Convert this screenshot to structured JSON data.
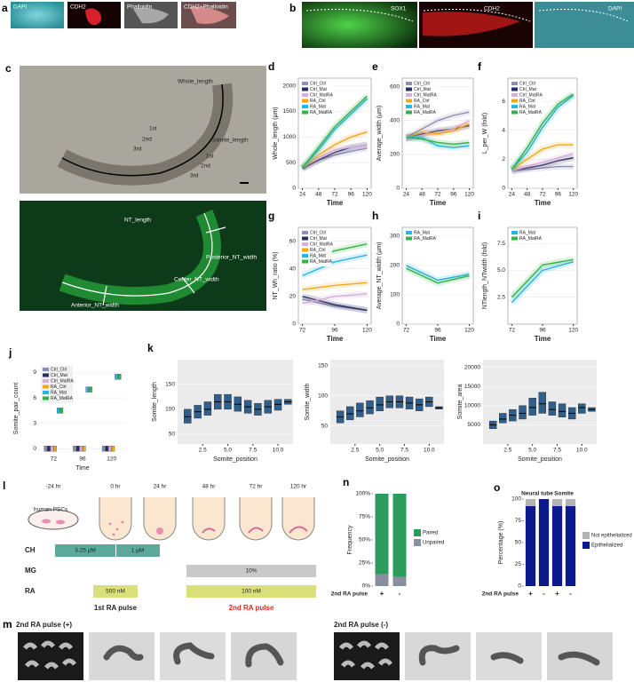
{
  "figure": {
    "panels": [
      "a",
      "b",
      "c",
      "l",
      "m"
    ],
    "a_labels": [
      "DAPI",
      "CDH2",
      "Phalloidin",
      "CDH2+Phalloidin"
    ],
    "b_labels": [
      "SOX1",
      "CDH2",
      "DAPI"
    ],
    "c_top": [
      "Whole_length",
      "Somite_length",
      "1st",
      "2nd",
      "3rd",
      "1st",
      "2nd",
      "3rd"
    ],
    "c_bottom": [
      "NT_length",
      "Posterior_NT_width",
      "Center_NT_width",
      "Anterior_NT_width"
    ],
    "l": {
      "times": [
        "-24 hr",
        "0 hr",
        "24 hr",
        "48 hr",
        "72 hr",
        "120 hr"
      ],
      "cells": "human PSCs",
      "rows": [
        "CH",
        "MG",
        "RA"
      ],
      "ch": [
        "3.25 µM",
        "1 µM"
      ],
      "mg": "10%",
      "ra": [
        "500 nM",
        "100 nM"
      ],
      "pulses": [
        "1st RA pulse",
        "2nd RA pulse"
      ]
    },
    "m": [
      "2nd RA pulse (+)",
      "2nd RA pulse (-)"
    ]
  },
  "chart_data": [
    {
      "panel": "d",
      "type": "line",
      "x_label": "Time",
      "y_label": "Whole_length (µm)",
      "x": [
        24,
        48,
        72,
        96,
        120
      ],
      "xlim": [
        18,
        126
      ],
      "xticks": [
        24,
        48,
        72,
        96,
        120
      ],
      "ylim": [
        0,
        2150
      ],
      "yticks": [
        0,
        500,
        1000,
        1500,
        2000
      ],
      "legend": "top-left",
      "series": [
        {
          "name": "Ctrl_Ctrl",
          "color": "#8e8fb5",
          "values": [
            400,
            550,
            650,
            720,
            780
          ]
        },
        {
          "name": "Ctrl_Mat",
          "color": "#2e2e5e",
          "values": [
            380,
            550,
            700,
            800,
            850
          ]
        },
        {
          "name": "Ctrl_MatRA",
          "color": "#d8aede",
          "values": [
            400,
            600,
            750,
            800,
            850
          ]
        },
        {
          "name": "RA_Ctrl",
          "color": "#f2a81d",
          "values": [
            400,
            650,
            850,
            1000,
            1100
          ]
        },
        {
          "name": "RA_Mat",
          "color": "#27b4e6",
          "values": [
            400,
            750,
            1150,
            1450,
            1750
          ]
        },
        {
          "name": "RA_MatRA",
          "color": "#35b34a",
          "values": [
            400,
            800,
            1200,
            1500,
            1800
          ]
        }
      ]
    },
    {
      "panel": "e",
      "type": "line",
      "x_label": "Time",
      "y_label": "Average_width (µm)",
      "x": [
        24,
        48,
        72,
        96,
        120
      ],
      "xlim": [
        18,
        126
      ],
      "xticks": [
        24,
        48,
        72,
        96,
        120
      ],
      "ylim": [
        0,
        650
      ],
      "yticks": [
        0,
        200,
        400,
        600
      ],
      "legend": "top-left",
      "series": [
        {
          "name": "Ctrl_Ctrl",
          "color": "#8e8fb5",
          "values": [
            300,
            350,
            400,
            430,
            450
          ]
        },
        {
          "name": "Ctrl_Mat",
          "color": "#2e2e5e",
          "values": [
            300,
            320,
            340,
            350,
            370
          ]
        },
        {
          "name": "Ctrl_MatRA",
          "color": "#d8aede",
          "values": [
            280,
            310,
            330,
            350,
            400
          ]
        },
        {
          "name": "RA_Ctrl",
          "color": "#f2a81d",
          "values": [
            300,
            330,
            320,
            340,
            380
          ]
        },
        {
          "name": "RA_Mat",
          "color": "#27b4e6",
          "values": [
            300,
            300,
            250,
            240,
            250
          ]
        },
        {
          "name": "RA_MatRA",
          "color": "#35b34a",
          "values": [
            300,
            290,
            270,
            260,
            270
          ]
        }
      ]
    },
    {
      "panel": "f",
      "type": "line",
      "x_label": "Time",
      "y_label": "L_per_W (fold)",
      "x": [
        24,
        48,
        72,
        96,
        120
      ],
      "xlim": [
        18,
        126
      ],
      "xticks": [
        24,
        48,
        72,
        96,
        120
      ],
      "ylim": [
        0,
        7.6
      ],
      "yticks": [
        0,
        2,
        4,
        6
      ],
      "legend": "top-left",
      "series": [
        {
          "name": "Ctrl_Ctrl",
          "color": "#8e8fb5",
          "values": [
            1.2,
            1.3,
            1.4,
            1.5,
            1.5
          ]
        },
        {
          "name": "Ctrl_Mat",
          "color": "#2e2e5e",
          "values": [
            1.2,
            1.4,
            1.6,
            1.9,
            2.1
          ]
        },
        {
          "name": "Ctrl_MatRA",
          "color": "#d8aede",
          "values": [
            1.2,
            1.5,
            1.8,
            2.1,
            2.4
          ]
        },
        {
          "name": "RA_Ctrl",
          "color": "#f2a81d",
          "values": [
            1.3,
            2.0,
            2.7,
            3.0,
            3.0
          ]
        },
        {
          "name": "RA_Mat",
          "color": "#27b4e6",
          "values": [
            1.3,
            2.5,
            4.2,
            5.6,
            6.4
          ]
        },
        {
          "name": "RA_MatRA",
          "color": "#35b34a",
          "values": [
            1.3,
            2.8,
            4.5,
            5.8,
            6.5
          ]
        }
      ]
    },
    {
      "panel": "g",
      "type": "line",
      "x_label": "Time",
      "y_label": "NT_Wh_ratio (%)",
      "x": [
        72,
        96,
        120
      ],
      "xlim": [
        69,
        123
      ],
      "xticks": [
        72,
        96,
        120
      ],
      "ylim": [
        0,
        70
      ],
      "yticks": [
        0,
        20,
        40,
        60
      ],
      "legend": "top-left",
      "series": [
        {
          "name": "Ctrl_Ctrl",
          "color": "#8e8fb5",
          "values": [
            18,
            13,
            10
          ]
        },
        {
          "name": "Ctrl_Mat",
          "color": "#2e2e5e",
          "values": [
            20,
            14,
            10
          ]
        },
        {
          "name": "Ctrl_MatRA",
          "color": "#d8aede",
          "values": [
            15,
            20,
            22
          ]
        },
        {
          "name": "RA_Ctrl",
          "color": "#f2a81d",
          "values": [
            25,
            28,
            30
          ]
        },
        {
          "name": "RA_Mat",
          "color": "#27b4e6",
          "values": [
            35,
            45,
            50
          ]
        },
        {
          "name": "RA_MatRA",
          "color": "#35b34a",
          "values": [
            45,
            53,
            58
          ]
        }
      ]
    },
    {
      "panel": "h",
      "type": "line",
      "x_label": "Time",
      "y_label": "Average_NT_width (µm)",
      "x": [
        72,
        96,
        120
      ],
      "xlim": [
        69,
        123
      ],
      "xticks": [
        72,
        96,
        120
      ],
      "ylim": [
        0,
        330
      ],
      "yticks": [
        0,
        100,
        200,
        300
      ],
      "legend": "top-left",
      "series": [
        {
          "name": "RA_Mat",
          "color": "#27b4e6",
          "values": [
            200,
            150,
            170
          ]
        },
        {
          "name": "RA_MatRA",
          "color": "#35b34a",
          "values": [
            190,
            140,
            165
          ]
        }
      ]
    },
    {
      "panel": "i",
      "type": "line",
      "x_label": "Time",
      "y_label": "NTlength_NTwidth (fold)",
      "x": [
        72,
        96,
        120
      ],
      "xlim": [
        69,
        123
      ],
      "xticks": [
        72,
        96,
        120
      ],
      "ylim": [
        0,
        9
      ],
      "yticks": [
        2.5,
        {
          "value": 5,
          "label": "5.0"
        },
        7.5
      ],
      "legend": "top-left",
      "series": [
        {
          "name": "RA_Mat",
          "color": "#27b4e6",
          "values": [
            2,
            5,
            5.8
          ]
        },
        {
          "name": "RA_MatRA",
          "color": "#35b34a",
          "values": [
            2.5,
            5.5,
            6
          ]
        }
      ]
    },
    {
      "panel": "j",
      "type": "box_group",
      "x_label": "Time",
      "y_label": "Somite_pair_count",
      "categories": [
        "72",
        "96",
        "120"
      ],
      "ylim": [
        -0.5,
        10
      ],
      "yticks": [
        0,
        3,
        6,
        9
      ],
      "legend": "top-left",
      "series": [
        {
          "name": "Ctrl_Ctrl",
          "color": "#8e8fb5",
          "values": [
            0,
            0,
            0
          ]
        },
        {
          "name": "Ctrl_Mat",
          "color": "#2e2e5e",
          "values": [
            0,
            0,
            0
          ]
        },
        {
          "name": "Ctrl_MatRA",
          "color": "#d8aede",
          "values": [
            0,
            0,
            0
          ]
        },
        {
          "name": "RA_Ctrl",
          "color": "#f2a81d",
          "values": [
            0,
            0,
            0
          ]
        },
        {
          "name": "RA_Mat",
          "color": "#27b4e6",
          "values": [
            4.5,
            7,
            8.5
          ]
        },
        {
          "name": "RA_MatRA",
          "color": "#35b34a",
          "values": [
            4.5,
            7,
            8.5
          ]
        }
      ]
    },
    {
      "panel": "k",
      "type": "box",
      "x_label": "Somite_position",
      "y_label": "Somite_length",
      "color": "#2f5f8a",
      "x": [
        1,
        2,
        3,
        4,
        5,
        6,
        7,
        8,
        9,
        10,
        11
      ],
      "xlim": [
        0,
        11.5
      ],
      "xticks": [
        2.5,
        {
          "value": 5,
          "label": "5.0"
        },
        7.5,
        {
          "value": 10,
          "label": "10.0"
        }
      ],
      "ylim": [
        30,
        200
      ],
      "yticks": [
        50,
        100,
        150
      ],
      "q1": [
        72,
        82,
        88,
        100,
        100,
        96,
        92,
        88,
        92,
        98,
        110
      ],
      "median": [
        85,
        95,
        100,
        115,
        115,
        110,
        105,
        100,
        105,
        110,
        115
      ],
      "q3": [
        100,
        108,
        115,
        130,
        130,
        125,
        118,
        112,
        118,
        120,
        120
      ]
    },
    {
      "type": "box",
      "x_label": "Somite_position",
      "y_label": "Somite_width",
      "color": "#2f5f8a",
      "x": [
        1,
        2,
        3,
        4,
        5,
        6,
        7,
        8,
        9,
        10,
        11
      ],
      "xlim": [
        0,
        11.5
      ],
      "xticks": [
        2.5,
        {
          "value": 5,
          "label": "5.0"
        },
        7.5,
        {
          "value": 10,
          "label": "10.0"
        }
      ],
      "ylim": [
        20,
        160
      ],
      "yticks": [
        50,
        100,
        150
      ],
      "q1": [
        55,
        60,
        65,
        70,
        75,
        80,
        80,
        78,
        75,
        82,
        78
      ],
      "median": [
        65,
        70,
        75,
        80,
        85,
        90,
        90,
        88,
        85,
        90,
        80
      ],
      "q3": [
        75,
        82,
        88,
        92,
        98,
        100,
        100,
        98,
        95,
        98,
        82
      ]
    },
    {
      "type": "box",
      "x_label": "Somite_position",
      "y_label": "Somite_area",
      "color": "#2f5f8a",
      "x": [
        1,
        2,
        3,
        4,
        5,
        6,
        7,
        8,
        9,
        10,
        11
      ],
      "xlim": [
        0,
        11.5
      ],
      "xticks": [
        2.5,
        {
          "value": 5,
          "label": "5.0"
        },
        7.5,
        {
          "value": 10,
          "label": "10.0"
        }
      ],
      "ylim": [
        0,
        22000
      ],
      "yticks": [
        5000,
        10000,
        15000,
        20000
      ],
      "q1": [
        4000,
        5500,
        6000,
        6500,
        7500,
        8000,
        7500,
        7000,
        6500,
        8000,
        8500
      ],
      "median": [
        5000,
        6500,
        7500,
        8000,
        9500,
        10500,
        9000,
        8500,
        8000,
        9500,
        9000
      ],
      "q3": [
        6000,
        8000,
        9000,
        10000,
        12000,
        13500,
        11000,
        10500,
        9500,
        10500,
        9500
      ]
    },
    {
      "panel": "n",
      "type": "stacked_bar",
      "x_label": "2nd RA pulse",
      "y_label": "Frequency",
      "categories": [
        "+",
        "-"
      ],
      "ylim": [
        0,
        100
      ],
      "yticks": [
        {
          "value": 0,
          "label": "0%"
        },
        {
          "value": 25,
          "label": "25%"
        },
        {
          "value": 50,
          "label": "50%"
        },
        {
          "value": 75,
          "label": "75%"
        },
        {
          "value": 100,
          "label": "100%"
        }
      ],
      "legend": "right",
      "series": [
        {
          "name": "Unpaired",
          "color": "#8a8fa0",
          "values": [
            13,
            10
          ]
        },
        {
          "name": "Paired",
          "color": "#2e9b5e",
          "values": [
            87,
            90
          ]
        }
      ]
    },
    {
      "panel": "o",
      "type": "stacked_bar",
      "x_label": "2nd RA pulse",
      "y_label": "Percentage (%)",
      "categories": [
        "+",
        "-",
        "+",
        "-"
      ],
      "group_labels": [
        "Neural tube",
        "Somite"
      ],
      "ylim": [
        0,
        100
      ],
      "yticks": [
        0,
        25,
        50,
        75,
        100
      ],
      "legend": "right",
      "series": [
        {
          "name": "Epithelialized",
          "color": "#0b1a8c",
          "values": [
            92,
            100,
            92,
            92
          ]
        },
        {
          "name": "Not epithelialized",
          "color": "#b3b3b3",
          "values": [
            8,
            0,
            8,
            8
          ]
        }
      ]
    }
  ]
}
